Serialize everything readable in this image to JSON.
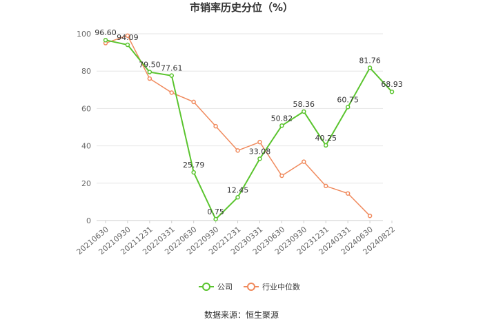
{
  "source_text": "数据来源：恒生聚源",
  "chart_data": {
    "type": "line",
    "title": "市销率历史分位（%）",
    "xlabel": "",
    "ylabel": "",
    "ylim": [
      0,
      100
    ],
    "yticks": [
      0,
      20,
      40,
      60,
      80,
      100
    ],
    "grid": true,
    "legend_position": "bottom",
    "categories": [
      "20210630",
      "20210930",
      "20211231",
      "20220331",
      "20220630",
      "20220930",
      "20221231",
      "20230331",
      "20230630",
      "20230930",
      "20231231",
      "20240331",
      "20240630",
      "20240822"
    ],
    "series": [
      {
        "name": "公司",
        "color": "#5ac42e",
        "values": [
          96.6,
          94.09,
          79.5,
          77.61,
          25.79,
          0.75,
          12.45,
          33.08,
          50.82,
          58.36,
          40.25,
          60.75,
          81.76,
          68.93
        ],
        "labels": [
          "96.60",
          "94.09",
          "79.50",
          "77.61",
          "25.79",
          "0.75",
          "12.45",
          "33.08",
          "50.82",
          "58.36",
          "40.25",
          "60.75",
          "81.76",
          "68.93"
        ]
      },
      {
        "name": "行业中位数",
        "color": "#f08a5d",
        "values": [
          95.0,
          99.0,
          76.0,
          68.5,
          63.5,
          50.5,
          37.5,
          42.0,
          24.0,
          31.5,
          18.5,
          14.5,
          2.5,
          null
        ]
      }
    ]
  }
}
